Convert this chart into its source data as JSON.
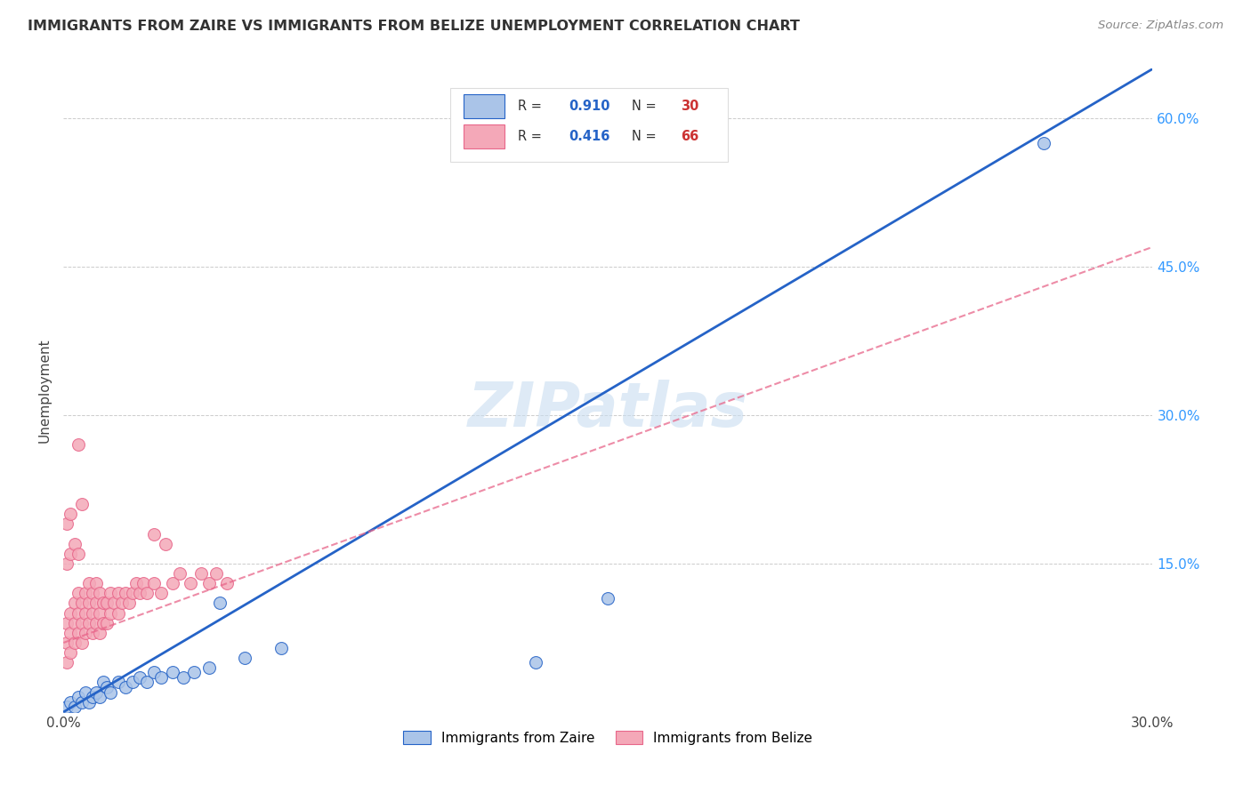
{
  "title": "IMMIGRANTS FROM ZAIRE VS IMMIGRANTS FROM BELIZE UNEMPLOYMENT CORRELATION CHART",
  "source": "Source: ZipAtlas.com",
  "ylabel": "Unemployment",
  "xmin": 0.0,
  "xmax": 0.3,
  "ymin": 0.0,
  "ymax": 0.65,
  "legend_zaire": "Immigrants from Zaire",
  "legend_belize": "Immigrants from Belize",
  "R_zaire": "0.910",
  "N_zaire": "30",
  "R_belize": "0.416",
  "N_belize": "66",
  "zaire_color": "#aac4e8",
  "belize_color": "#f4a8b8",
  "zaire_line_color": "#2563c7",
  "belize_line_color": "#e8668a",
  "watermark": "ZIPatlas",
  "watermark_color": "#c8ddf0",
  "zaire_line_x0": 0.0,
  "zaire_line_y0": 0.0,
  "zaire_line_x1": 0.3,
  "zaire_line_y1": 0.65,
  "belize_line_x0": 0.0,
  "belize_line_y0": 0.07,
  "belize_line_x1": 0.3,
  "belize_line_y1": 0.47,
  "zaire_points_x": [
    0.001,
    0.002,
    0.003,
    0.004,
    0.005,
    0.006,
    0.007,
    0.008,
    0.009,
    0.01,
    0.011,
    0.012,
    0.013,
    0.015,
    0.017,
    0.019,
    0.021,
    0.023,
    0.025,
    0.027,
    0.03,
    0.033,
    0.036,
    0.04,
    0.043,
    0.05,
    0.06,
    0.13,
    0.15,
    0.27
  ],
  "zaire_points_y": [
    0.005,
    0.01,
    0.005,
    0.015,
    0.01,
    0.02,
    0.01,
    0.015,
    0.02,
    0.015,
    0.03,
    0.025,
    0.02,
    0.03,
    0.025,
    0.03,
    0.035,
    0.03,
    0.04,
    0.035,
    0.04,
    0.035,
    0.04,
    0.045,
    0.11,
    0.055,
    0.065,
    0.05,
    0.115,
    0.575
  ],
  "belize_points_x": [
    0.001,
    0.001,
    0.001,
    0.002,
    0.002,
    0.002,
    0.003,
    0.003,
    0.003,
    0.004,
    0.004,
    0.004,
    0.005,
    0.005,
    0.005,
    0.006,
    0.006,
    0.006,
    0.007,
    0.007,
    0.007,
    0.008,
    0.008,
    0.008,
    0.009,
    0.009,
    0.009,
    0.01,
    0.01,
    0.01,
    0.011,
    0.011,
    0.012,
    0.012,
    0.013,
    0.013,
    0.014,
    0.015,
    0.015,
    0.016,
    0.017,
    0.018,
    0.019,
    0.02,
    0.021,
    0.022,
    0.023,
    0.025,
    0.027,
    0.03,
    0.032,
    0.035,
    0.038,
    0.04,
    0.042,
    0.045,
    0.001,
    0.002,
    0.003,
    0.004,
    0.001,
    0.002,
    0.004,
    0.005,
    0.025,
    0.028
  ],
  "belize_points_y": [
    0.05,
    0.07,
    0.09,
    0.06,
    0.08,
    0.1,
    0.07,
    0.09,
    0.11,
    0.08,
    0.1,
    0.12,
    0.07,
    0.09,
    0.11,
    0.08,
    0.1,
    0.12,
    0.09,
    0.11,
    0.13,
    0.08,
    0.1,
    0.12,
    0.09,
    0.11,
    0.13,
    0.08,
    0.1,
    0.12,
    0.09,
    0.11,
    0.09,
    0.11,
    0.1,
    0.12,
    0.11,
    0.1,
    0.12,
    0.11,
    0.12,
    0.11,
    0.12,
    0.13,
    0.12,
    0.13,
    0.12,
    0.13,
    0.12,
    0.13,
    0.14,
    0.13,
    0.14,
    0.13,
    0.14,
    0.13,
    0.15,
    0.16,
    0.17,
    0.16,
    0.19,
    0.2,
    0.27,
    0.21,
    0.18,
    0.17
  ]
}
